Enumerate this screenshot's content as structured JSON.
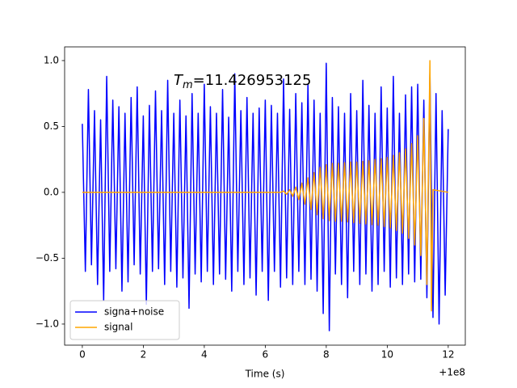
{
  "chart_data": {
    "type": "line",
    "xlabel": "Time (s)",
    "x_offset_label": "+1e8",
    "annotation": {
      "symbol": "T",
      "subscript": "m",
      "text": "=11.426953125"
    },
    "legend": "lower left",
    "xlim": [
      -0.58,
      12.56
    ],
    "ylim": [
      -1.16,
      1.104
    ],
    "xticks": [
      0,
      2,
      4,
      6,
      8,
      10,
      12
    ],
    "yticks": [
      {
        "value": -1.0,
        "label": "−1.0"
      },
      {
        "value": -0.5,
        "label": "−0.5"
      },
      {
        "value": 0.0,
        "label": "0.0"
      },
      {
        "value": 0.5,
        "label": "0.5"
      },
      {
        "value": 1.0,
        "label": "1.0"
      }
    ],
    "series": [
      {
        "name": "signa+noise",
        "color": "#0000ff",
        "x": [
          0,
          0.1,
          0.2,
          0.3,
          0.4,
          0.5,
          0.6,
          0.7,
          0.8,
          0.9,
          1,
          1.1,
          1.2,
          1.3,
          1.4,
          1.5,
          1.6,
          1.7,
          1.8,
          1.9,
          2,
          2.1,
          2.2,
          2.3,
          2.4,
          2.5,
          2.6,
          2.7,
          2.8,
          2.9,
          3,
          3.1,
          3.2,
          3.3,
          3.4,
          3.5,
          3.6,
          3.7,
          3.8,
          3.9,
          4,
          4.1,
          4.2,
          4.3,
          4.4,
          4.5,
          4.6,
          4.7,
          4.8,
          4.9,
          5,
          5.1,
          5.2,
          5.3,
          5.4,
          5.5,
          5.6,
          5.7,
          5.8,
          5.9,
          6,
          6.1,
          6.2,
          6.3,
          6.4,
          6.5,
          6.6,
          6.7,
          6.8,
          6.9,
          7,
          7.1,
          7.2,
          7.3,
          7.4,
          7.5,
          7.6,
          7.7,
          7.8,
          7.9,
          8,
          8.1,
          8.2,
          8.3,
          8.4,
          8.5,
          8.6,
          8.7,
          8.8,
          8.9,
          9,
          9.1,
          9.2,
          9.3,
          9.4,
          9.5,
          9.6,
          9.7,
          9.8,
          9.9,
          10,
          10.1,
          10.2,
          10.3,
          10.4,
          10.5,
          10.6,
          10.7,
          10.8,
          10.9,
          11,
          11.1,
          11.2,
          11.3,
          11.4,
          11.5,
          11.6,
          11.7,
          11.8,
          11.9,
          12
        ],
        "values": [
          0.52,
          -0.6,
          0.78,
          -0.55,
          0.62,
          -0.7,
          0.55,
          -0.82,
          0.88,
          -0.6,
          0.7,
          -0.58,
          0.65,
          -0.75,
          0.6,
          -0.68,
          0.72,
          -0.55,
          0.8,
          -0.62,
          0.58,
          -0.85,
          0.66,
          -0.6,
          0.77,
          -0.58,
          0.62,
          -0.7,
          0.85,
          -0.6,
          0.6,
          -0.72,
          0.7,
          -0.65,
          0.58,
          -0.88,
          0.75,
          -0.62,
          0.6,
          -0.68,
          0.82,
          -0.6,
          0.65,
          -0.7,
          0.6,
          -0.62,
          0.78,
          -0.66,
          0.57,
          -0.75,
          0.9,
          -0.6,
          0.62,
          -0.7,
          0.72,
          -0.65,
          0.6,
          -0.78,
          0.64,
          -0.6,
          0.7,
          -0.82,
          0.66,
          -0.6,
          0.6,
          -0.72,
          0.86,
          -0.65,
          0.63,
          -0.7,
          0.75,
          -0.6,
          0.68,
          -0.7,
          0.82,
          -0.66,
          0.7,
          -0.75,
          0.6,
          -0.92,
          0.98,
          -1.05,
          0.72,
          -0.62,
          0.65,
          -0.7,
          0.6,
          -0.8,
          0.75,
          -0.6,
          0.62,
          -0.7,
          0.85,
          -0.62,
          0.66,
          -0.75,
          0.6,
          -0.7,
          0.8,
          -0.6,
          0.64,
          -0.72,
          0.88,
          -0.65,
          0.6,
          -0.7,
          0.74,
          -0.62,
          0.8,
          -0.68,
          0.82,
          -0.66,
          0.7,
          -0.8,
          0.9,
          -0.95,
          0.75,
          -1.0,
          0.62,
          -0.78,
          0.48
        ]
      },
      {
        "name": "signal",
        "color": "#ffa500",
        "x": [
          0,
          6.5,
          6.6,
          6.7,
          6.8,
          6.9,
          7,
          7.1,
          7.2,
          7.3,
          7.4,
          7.5,
          7.6,
          7.7,
          7.8,
          7.9,
          8,
          8.1,
          8.2,
          8.3,
          8.4,
          8.5,
          8.6,
          8.7,
          8.8,
          8.9,
          9,
          9.1,
          9.2,
          9.3,
          9.4,
          9.5,
          9.6,
          9.7,
          9.8,
          9.9,
          10,
          10.1,
          10.2,
          10.3,
          10.4,
          10.5,
          10.6,
          10.7,
          10.8,
          10.9,
          11,
          11.1,
          11.2,
          11.3,
          11.4,
          11.45,
          11.5,
          12
        ],
        "values": [
          0,
          0,
          0.01,
          -0.015,
          0.02,
          -0.03,
          0.04,
          -0.055,
          0.07,
          -0.09,
          0.11,
          -0.13,
          0.15,
          -0.17,
          0.19,
          -0.2,
          0.21,
          -0.215,
          0.22,
          -0.22,
          0.22,
          -0.22,
          0.225,
          -0.225,
          0.23,
          -0.23,
          0.23,
          -0.235,
          0.235,
          -0.24,
          0.24,
          -0.245,
          0.25,
          -0.25,
          0.255,
          -0.26,
          0.265,
          -0.27,
          0.28,
          -0.29,
          0.3,
          -0.31,
          0.33,
          -0.35,
          0.37,
          -0.4,
          0.43,
          -0.48,
          0.56,
          -0.7,
          1.0,
          -0.9,
          0.02,
          0
        ]
      }
    ]
  }
}
